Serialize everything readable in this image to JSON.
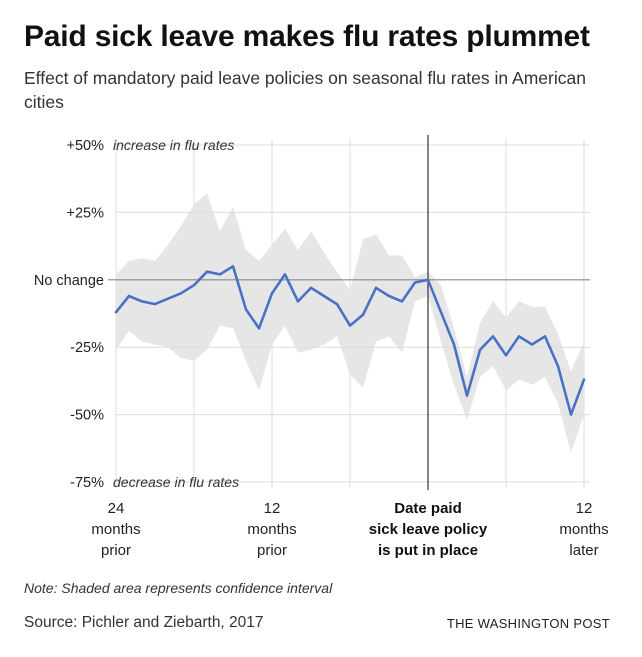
{
  "header": {
    "title": "Paid sick leave makes flu rates plummet",
    "subtitle": "Effect of mandatory paid leave policies on seasonal flu rates in American cities"
  },
  "footer": {
    "note": "Note: Shaded area represents confidence interval",
    "source": "Source: Pichler and Ziebarth, 2017",
    "credit": "THE WASHINGTON POST"
  },
  "colors": {
    "line": "#4a72c4",
    "band": "#e6e6e6",
    "grid": "#dcdcdc",
    "zero_line": "#888888",
    "event_line": "#333333"
  },
  "chart_data": {
    "type": "line",
    "title": "Paid sick leave makes flu rates plummet",
    "xlabel": "",
    "ylabel": "",
    "xlim": [
      -24,
      12
    ],
    "ylim": [
      -75,
      50
    ],
    "y_ticks": [
      {
        "value": 50,
        "label": "+50%",
        "annotation": "increase in flu rates"
      },
      {
        "value": 25,
        "label": "+25%",
        "annotation": ""
      },
      {
        "value": 0,
        "label": "No change",
        "annotation": ""
      },
      {
        "value": -25,
        "label": "-25%",
        "annotation": ""
      },
      {
        "value": -50,
        "label": "-50%",
        "annotation": ""
      },
      {
        "value": -75,
        "label": "-75%",
        "annotation": "decrease in flu rates"
      }
    ],
    "x_ticks": [
      {
        "value": -24,
        "lines": [
          "24",
          "months",
          "prior"
        ],
        "bold": false
      },
      {
        "value": -12,
        "lines": [
          "12",
          "months",
          "prior"
        ],
        "bold": false
      },
      {
        "value": 0,
        "lines": [
          "Date paid",
          "sick leave policy",
          "is put in place"
        ],
        "bold": true
      },
      {
        "value": 12,
        "lines": [
          "12",
          "months",
          "later"
        ],
        "bold": false
      }
    ],
    "vertical_gridlines": [
      -24,
      -18,
      -12,
      -6,
      0,
      6,
      12
    ],
    "event_marker": 0,
    "grid": true,
    "legend": "none",
    "series": [
      {
        "x": [
          -24,
          -23,
          -22,
          -21,
          -20,
          -19,
          -18,
          -17,
          -16,
          -15,
          -14,
          -13,
          -12,
          -11,
          -10,
          -9,
          -8,
          -7,
          -6,
          -5,
          -4,
          -3,
          -2,
          -1,
          0,
          1,
          2,
          3,
          4,
          5,
          6,
          7,
          8,
          9,
          10,
          11,
          12
        ],
        "y": [
          -12,
          -6,
          -8,
          -9,
          -7,
          -5,
          -2,
          3,
          2,
          5,
          -11,
          -18,
          -5,
          2,
          -8,
          -3,
          -6,
          -9,
          -17,
          -13,
          -3,
          -6,
          -8,
          -1,
          0,
          -12,
          -24,
          -43,
          -26,
          -21,
          -28,
          -21,
          -24,
          -21,
          -32,
          -50,
          -37
        ],
        "upper": [
          2,
          7,
          8,
          7,
          13,
          20,
          28,
          32,
          18,
          27,
          11,
          7,
          13,
          19,
          11,
          18,
          10,
          3,
          -4,
          15,
          17,
          9,
          9,
          1,
          3,
          -2,
          -18,
          -36,
          -16,
          -8,
          -14,
          -8,
          -10,
          -10,
          -20,
          -34,
          -23
        ],
        "lower": [
          -26,
          -19,
          -23,
          -24,
          -25,
          -29,
          -30,
          -26,
          -17,
          -18,
          -30,
          -41,
          -24,
          -17,
          -27,
          -26,
          -24,
          -21,
          -35,
          -40,
          -23,
          -21,
          -27,
          -8,
          -6,
          -23,
          -39,
          -52,
          -36,
          -32,
          -41,
          -37,
          -39,
          -36,
          -46,
          -64,
          -50
        ]
      }
    ]
  }
}
